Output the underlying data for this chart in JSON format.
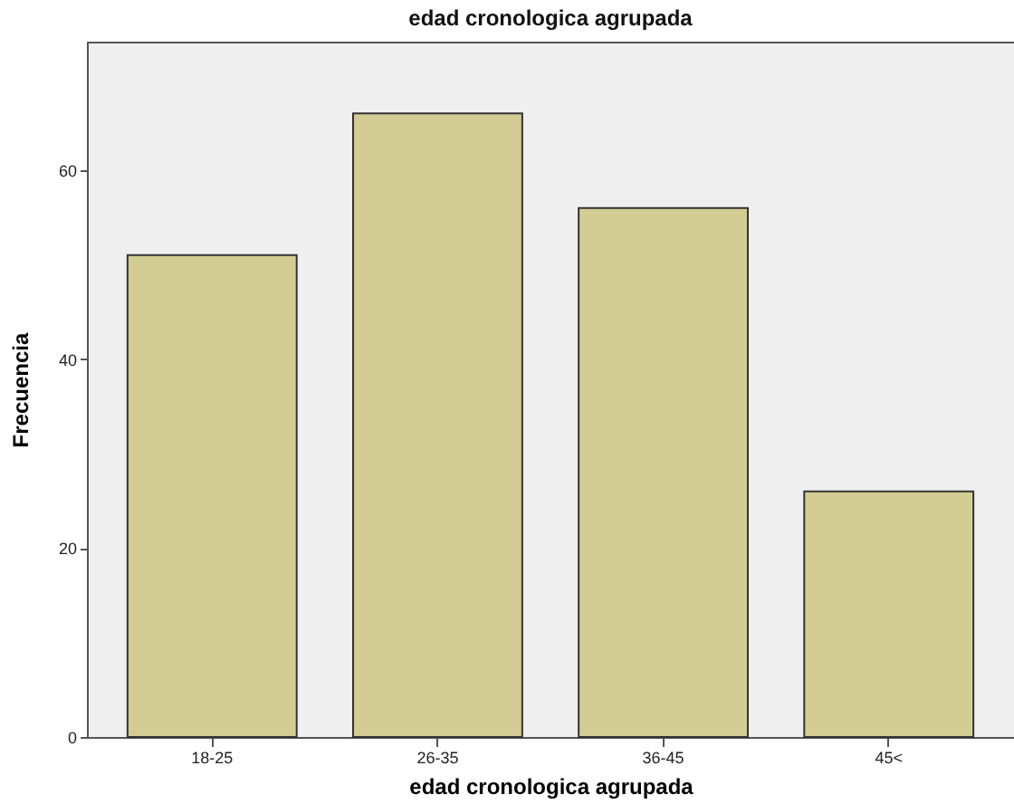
{
  "chart_data": {
    "type": "bar",
    "title": "edad cronologica agrupada",
    "xlabel": "edad cronologica agrupada",
    "ylabel": "Frecuencia",
    "categories": [
      "18-25",
      "26-35",
      "36-45",
      "45<"
    ],
    "values": [
      51,
      66,
      56,
      26
    ],
    "color": "#d3cd94",
    "ylim": [
      0,
      73.6
    ],
    "yticks": [
      0,
      20,
      40,
      60
    ],
    "grid": false
  }
}
